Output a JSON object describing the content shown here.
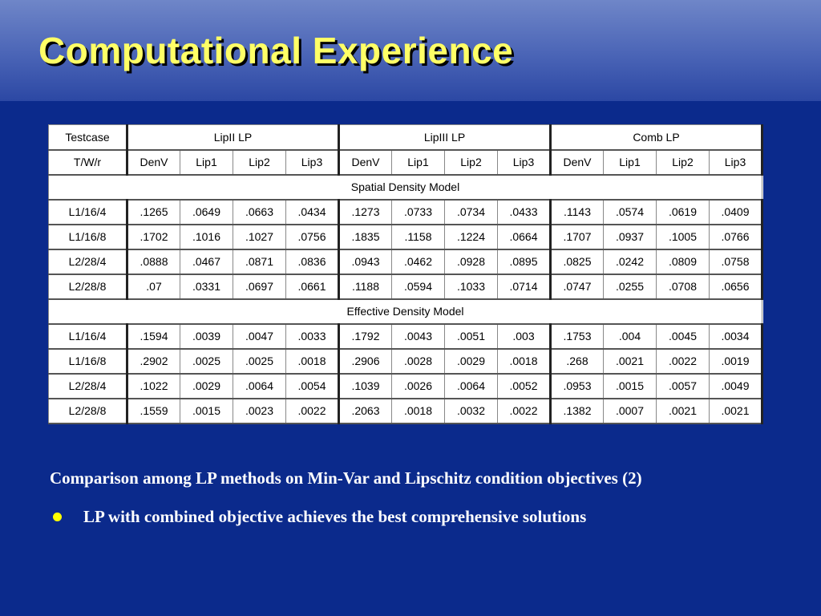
{
  "header": {
    "title": "Computational Experience"
  },
  "table": {
    "corner": "Testcase",
    "groups": [
      "LipII LP",
      "LipIII LP",
      "Comb LP"
    ],
    "row_header": "T/W/r",
    "columns": [
      "DenV",
      "Lip1",
      "Lip2",
      "Lip3",
      "DenV",
      "Lip1",
      "Lip2",
      "Lip3",
      "DenV",
      "Lip1",
      "Lip2",
      "Lip3"
    ],
    "sections": [
      {
        "title": "Spatial Density Model",
        "rows": [
          {
            "label": "L1/16/4",
            "values": [
              ".1265",
              ".0649",
              ".0663",
              ".0434",
              ".1273",
              ".0733",
              ".0734",
              ".0433",
              ".1143",
              ".0574",
              ".0619",
              ".0409"
            ]
          },
          {
            "label": "L1/16/8",
            "values": [
              ".1702",
              ".1016",
              ".1027",
              ".0756",
              ".1835",
              ".1158",
              ".1224",
              ".0664",
              ".1707",
              ".0937",
              ".1005",
              ".0766"
            ]
          },
          {
            "label": "L2/28/4",
            "values": [
              ".0888",
              ".0467",
              ".0871",
              ".0836",
              ".0943",
              ".0462",
              ".0928",
              ".0895",
              ".0825",
              ".0242",
              ".0809",
              ".0758"
            ]
          },
          {
            "label": "L2/28/8",
            "values": [
              ".07",
              ".0331",
              ".0697",
              ".0661",
              ".1188",
              ".0594",
              ".1033",
              ".0714",
              ".0747",
              ".0255",
              ".0708",
              ".0656"
            ]
          }
        ]
      },
      {
        "title": "Effective Density Model",
        "rows": [
          {
            "label": "L1/16/4",
            "values": [
              ".1594",
              ".0039",
              ".0047",
              ".0033",
              ".1792",
              ".0043",
              ".0051",
              ".003",
              ".1753",
              ".004",
              ".0045",
              ".0034"
            ]
          },
          {
            "label": "L1/16/8",
            "values": [
              ".2902",
              ".0025",
              ".0025",
              ".0018",
              ".2906",
              ".0028",
              ".0029",
              ".0018",
              ".268",
              ".0021",
              ".0022",
              ".0019"
            ]
          },
          {
            "label": "L2/28/4",
            "values": [
              ".1022",
              ".0029",
              ".0064",
              ".0054",
              ".1039",
              ".0026",
              ".0064",
              ".0052",
              ".0953",
              ".0015",
              ".0057",
              ".0049"
            ]
          },
          {
            "label": "L2/28/8",
            "values": [
              ".1559",
              ".0015",
              ".0023",
              ".0022",
              ".2063",
              ".0018",
              ".0032",
              ".0022",
              ".1382",
              ".0007",
              ".0021",
              ".0021"
            ]
          }
        ]
      }
    ]
  },
  "caption": "Comparison among LP methods on Min-Var and Lipschitz condition objectives (2)",
  "bullets": [
    "LP with combined objective achieves the best comprehensive solutions"
  ]
}
